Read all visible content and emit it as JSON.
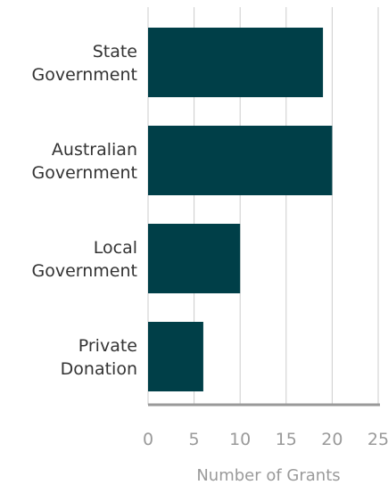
{
  "chart_data": {
    "type": "bar",
    "orientation": "horizontal",
    "categories": [
      [
        "State",
        "Government"
      ],
      [
        "Australian",
        "Government"
      ],
      [
        "Local",
        "Government"
      ],
      [
        "Private",
        "Donation"
      ]
    ],
    "values": [
      19,
      20,
      10,
      6
    ],
    "xlabel": "Number of Grants",
    "ylabel": "",
    "xlim": [
      0,
      25
    ],
    "xticks": [
      0,
      5,
      10,
      15,
      20,
      25
    ],
    "grid": true,
    "colors": {
      "bar": "#003f48",
      "grid": "#cccccc",
      "axis": "#999999"
    }
  }
}
